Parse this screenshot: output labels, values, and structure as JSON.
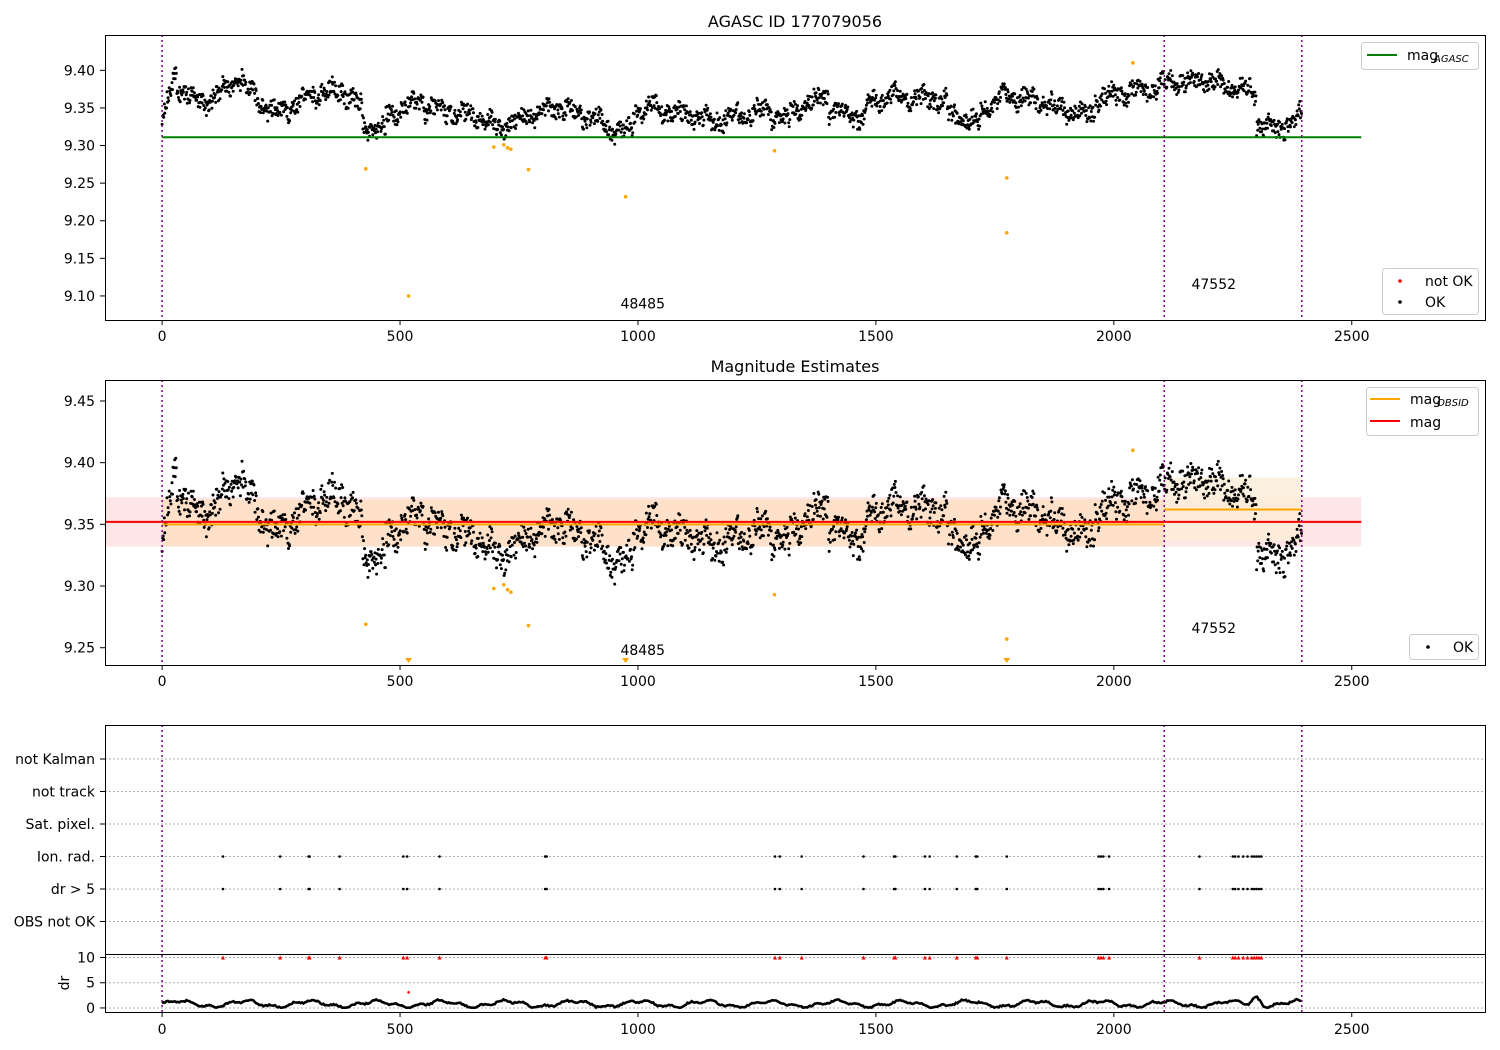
{
  "colors": {
    "agasc_line": "#008000",
    "mag_line": "#ff0000",
    "obsid_line": "#ffa500",
    "ok_point": "#000000",
    "not_ok_point": "#ffa500",
    "mag_band": "#ffb6b6",
    "obsid_band": "#ffdcb0",
    "obsid_band2": "#fbeed6",
    "vline": "#800080",
    "flag_red": "#ff0000",
    "grid": "#b0b0b0"
  },
  "chart_data": [
    {
      "id": "agasc",
      "type": "scatter",
      "title": "AGASC ID 177079056",
      "xlabel": "",
      "ylabel": "",
      "xlim": [
        -120,
        2780
      ],
      "ylim": [
        9.068,
        9.447
      ],
      "xticks": [
        0,
        500,
        1000,
        1500,
        2000,
        2500
      ],
      "yticks": [
        9.1,
        9.15,
        9.2,
        9.25,
        9.3,
        9.35,
        9.4
      ],
      "grid": false,
      "legend_top": {
        "placement": "top-right",
        "entries": [
          {
            "label": "mag",
            "sub": "AGASC",
            "kind": "line",
            "color": "#008000"
          }
        ]
      },
      "legend_bottom": {
        "placement": "bottom-right",
        "entries": [
          {
            "label": "not OK",
            "kind": "dot",
            "color": "#ff0000"
          },
          {
            "label": "OK",
            "kind": "dot",
            "color": "#000000"
          }
        ]
      },
      "hlines": [
        {
          "name": "mag_AGASC",
          "y": 9.311,
          "x0": 0,
          "x1": 2520,
          "color": "#008000"
        }
      ],
      "bands": [],
      "obsid_boundaries": [
        0,
        2106,
        2395
      ],
      "obsid_labels": [
        {
          "text": "48485",
          "x": 1010,
          "y": 9.083
        },
        {
          "text": "47552",
          "x": 2210,
          "y": 9.109
        }
      ],
      "not_ok_points": [
        [
          428,
          9.269
        ],
        [
          518,
          9.1
        ],
        [
          697,
          9.298
        ],
        [
          718,
          9.301
        ],
        [
          726,
          9.297
        ],
        [
          733,
          9.295
        ],
        [
          770,
          9.268
        ],
        [
          974,
          9.232
        ],
        [
          1287,
          9.293
        ],
        [
          1775,
          9.257
        ],
        [
          1775,
          9.184
        ],
        [
          2040,
          9.41
        ]
      ],
      "segments": [
        [
          0,
          30,
          9.335,
          9.395
        ],
        [
          30,
          95,
          9.38,
          9.352
        ],
        [
          95,
          170,
          9.36,
          9.39
        ],
        [
          170,
          230,
          9.38,
          9.345
        ],
        [
          230,
          300,
          9.34,
          9.36
        ],
        [
          300,
          380,
          9.365,
          9.375
        ],
        [
          380,
          420,
          9.37,
          9.35
        ],
        [
          420,
          470,
          9.325,
          9.318
        ],
        [
          470,
          550,
          9.34,
          9.36
        ],
        [
          550,
          650,
          9.35,
          9.34
        ],
        [
          650,
          710,
          9.345,
          9.322
        ],
        [
          710,
          760,
          9.325,
          9.335
        ],
        [
          760,
          850,
          9.34,
          9.352
        ],
        [
          850,
          930,
          9.348,
          9.33
        ],
        [
          930,
          990,
          9.322,
          9.318
        ],
        [
          990,
          1040,
          9.345,
          9.355
        ],
        [
          1040,
          1150,
          9.348,
          9.335
        ],
        [
          1150,
          1280,
          9.33,
          9.35
        ],
        [
          1280,
          1320,
          9.34,
          9.33
        ],
        [
          1320,
          1400,
          9.345,
          9.368
        ],
        [
          1400,
          1480,
          9.345,
          9.335
        ],
        [
          1480,
          1550,
          9.355,
          9.37
        ],
        [
          1550,
          1650,
          9.365,
          9.36
        ],
        [
          1650,
          1720,
          9.34,
          9.33
        ],
        [
          1720,
          1780,
          9.345,
          9.368
        ],
        [
          1780,
          1870,
          9.365,
          9.358
        ],
        [
          1870,
          1960,
          9.35,
          9.34
        ],
        [
          1960,
          2106,
          9.362,
          9.38
        ],
        [
          2106,
          2220,
          9.385,
          9.385
        ],
        [
          2220,
          2300,
          9.38,
          9.37
        ],
        [
          2300,
          2350,
          9.33,
          9.318
        ],
        [
          2350,
          2395,
          9.325,
          9.34
        ]
      ]
    },
    {
      "id": "mag",
      "type": "scatter",
      "title": "Magnitude Estimates",
      "xlabel": "",
      "ylabel": "",
      "xlim": [
        -120,
        2780
      ],
      "ylim": [
        9.236,
        9.467
      ],
      "xticks": [
        0,
        500,
        1000,
        1500,
        2000,
        2500
      ],
      "yticks": [
        9.25,
        9.3,
        9.35,
        9.4,
        9.45
      ],
      "grid": false,
      "legend_top": {
        "placement": "top-right",
        "entries": [
          {
            "label": "mag",
            "sub": "OBSID",
            "kind": "line",
            "color": "#ffa500"
          },
          {
            "label": "mag",
            "sub": "",
            "kind": "line",
            "color": "#ff0000"
          }
        ]
      },
      "legend_bottom": {
        "placement": "bottom-right",
        "entries": [
          {
            "label": "OK",
            "kind": "dot",
            "color": "#000000"
          }
        ]
      },
      "hlines": [
        {
          "name": "mag",
          "y": 9.352,
          "x0": -120,
          "x1": 2520,
          "color": "#ff0000"
        },
        {
          "name": "mag_OBSID_1",
          "y": 9.35,
          "x0": 0,
          "x1": 2106,
          "color": "#ffa500"
        },
        {
          "name": "mag_OBSID_2",
          "y": 9.362,
          "x0": 2106,
          "x1": 2395,
          "color": "#ffa500"
        }
      ],
      "bands": [
        {
          "y0": 9.332,
          "y1": 9.372,
          "x0": -120,
          "x1": 2520,
          "color": "#ffb6b6",
          "opacity": 0.35
        },
        {
          "y0": 9.332,
          "y1": 9.37,
          "x0": 0,
          "x1": 2106,
          "color": "#ffdcb0",
          "opacity": 0.55
        },
        {
          "y0": 9.337,
          "y1": 9.388,
          "x0": 2106,
          "x1": 2395,
          "color": "#fbeed6",
          "opacity": 0.8
        }
      ],
      "obsid_boundaries": [
        0,
        2106,
        2395
      ],
      "obsid_labels": [
        {
          "text": "48485",
          "x": 1010,
          "y": 9.244
        },
        {
          "text": "47552",
          "x": 2210,
          "y": 9.262
        }
      ],
      "not_ok_points": [
        [
          428,
          9.269
        ],
        [
          697,
          9.298
        ],
        [
          718,
          9.301
        ],
        [
          726,
          9.297
        ],
        [
          733,
          9.295
        ],
        [
          770,
          9.268
        ],
        [
          1287,
          9.293
        ],
        [
          1775,
          9.257
        ],
        [
          2040,
          9.41
        ]
      ],
      "clipped_low_x": [
        518,
        974,
        1775
      ],
      "segments": [
        [
          0,
          30,
          9.335,
          9.395
        ],
        [
          30,
          95,
          9.38,
          9.352
        ],
        [
          95,
          170,
          9.36,
          9.39
        ],
        [
          170,
          230,
          9.38,
          9.345
        ],
        [
          230,
          300,
          9.34,
          9.36
        ],
        [
          300,
          380,
          9.365,
          9.375
        ],
        [
          380,
          420,
          9.37,
          9.35
        ],
        [
          420,
          470,
          9.325,
          9.318
        ],
        [
          470,
          550,
          9.34,
          9.36
        ],
        [
          550,
          650,
          9.35,
          9.34
        ],
        [
          650,
          710,
          9.345,
          9.322
        ],
        [
          710,
          760,
          9.325,
          9.335
        ],
        [
          760,
          850,
          9.34,
          9.352
        ],
        [
          850,
          930,
          9.348,
          9.33
        ],
        [
          930,
          990,
          9.322,
          9.318
        ],
        [
          990,
          1040,
          9.345,
          9.355
        ],
        [
          1040,
          1150,
          9.348,
          9.335
        ],
        [
          1150,
          1280,
          9.33,
          9.35
        ],
        [
          1280,
          1320,
          9.34,
          9.33
        ],
        [
          1320,
          1400,
          9.345,
          9.368
        ],
        [
          1400,
          1480,
          9.345,
          9.335
        ],
        [
          1480,
          1550,
          9.355,
          9.37
        ],
        [
          1550,
          1650,
          9.365,
          9.36
        ],
        [
          1650,
          1720,
          9.34,
          9.33
        ],
        [
          1720,
          1780,
          9.345,
          9.368
        ],
        [
          1780,
          1870,
          9.365,
          9.358
        ],
        [
          1870,
          1960,
          9.35,
          9.34
        ],
        [
          1960,
          2106,
          9.362,
          9.38
        ],
        [
          2106,
          2220,
          9.385,
          9.385
        ],
        [
          2220,
          2300,
          9.38,
          9.37
        ],
        [
          2300,
          2350,
          9.33,
          9.318
        ],
        [
          2350,
          2395,
          9.325,
          9.34
        ]
      ]
    },
    {
      "id": "flags",
      "type": "scatter",
      "title": "",
      "xlim": [
        -120,
        2780
      ],
      "categories": [
        "not Kalman",
        "not track",
        "Sat. pixel.",
        "Ion. rad.",
        "dr > 5",
        "OBS not OK"
      ],
      "grid": true,
      "obsid_boundaries": [
        0,
        2106,
        2395
      ],
      "flag_x": [
        128,
        248,
        308,
        310,
        373,
        507,
        515,
        583,
        805,
        808,
        1288,
        1298,
        1344,
        1474,
        1538,
        1541,
        1603,
        1613,
        1670,
        1710,
        1713,
        1775,
        1968,
        1973,
        1978,
        1990,
        2180,
        2250,
        2255,
        2262,
        2272,
        2281,
        2290,
        2295,
        2300,
        2305,
        2310
      ]
    },
    {
      "id": "dr",
      "type": "line",
      "title": "",
      "xlabel": "",
      "ylabel": "dr",
      "xlim": [
        -120,
        2780
      ],
      "ylim": [
        -0.8,
        10.5
      ],
      "xticks": [
        0,
        500,
        1000,
        1500,
        2000,
        2500
      ],
      "yticks": [
        0,
        5,
        10
      ],
      "grid": true,
      "obsid_boundaries": [
        0,
        2106,
        2395
      ],
      "clipped_high_x": [
        128,
        248,
        308,
        310,
        373,
        507,
        515,
        583,
        805,
        808,
        1288,
        1298,
        1344,
        1474,
        1538,
        1541,
        1603,
        1613,
        1670,
        1710,
        1713,
        1775,
        1968,
        1973,
        1978,
        1990,
        2180,
        2250,
        2255,
        2262,
        2272,
        2281,
        2290,
        2295,
        2300,
        2305,
        2310
      ],
      "outlier_points": [
        [
          518,
          3.1
        ]
      ],
      "baseline": 0.8,
      "spike": [
        2300,
        2.7
      ]
    }
  ]
}
